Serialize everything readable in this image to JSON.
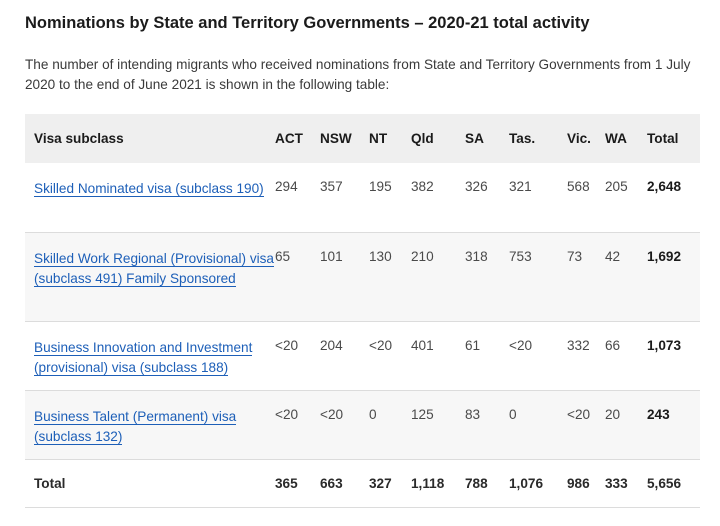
{
  "heading": "Nominations by State and Territory Governments – 2020-21 total activity",
  "intro": "The number of intending migrants who received nominations from State and Territory Governments from 1 July 2020 to the end of June 2021 is shown in the following table:",
  "table": {
    "headers": [
      "Visa subclass",
      "ACT",
      "NSW",
      "NT",
      "Qld",
      "SA",
      "Tas.",
      "Vic.",
      "WA",
      "Total"
    ],
    "rows": [
      {
        "visa": "Skilled Nominated visa (subclass 190)",
        "values": [
          "294",
          "357",
          "195",
          "382",
          "326",
          "321",
          "568",
          "205",
          "2,648"
        ]
      },
      {
        "visa": "Skilled Work Regional (Provisional) visa (subclass 491) Family Sponsored",
        "values": [
          "65",
          "101",
          "130",
          "210",
          "318",
          "753",
          "73",
          "42",
          "1,692"
        ]
      },
      {
        "visa": "Business Innovation and Investment (provisional) visa (subclass 188)",
        "values": [
          "<20",
          "204",
          "<20",
          "401",
          "61",
          "<20",
          "332",
          "66",
          "1,073"
        ]
      },
      {
        "visa": "Business Talent (Permanent) visa (subclass 132)",
        "values": [
          "<20",
          "<20",
          "0",
          "125",
          "83",
          "0",
          "<20",
          "20",
          "243"
        ]
      }
    ],
    "total_row": {
      "label": "Total",
      "values": [
        "365",
        "663",
        "327",
        "1,118",
        "788",
        "1,076",
        "986",
        "333",
        "5,656"
      ]
    }
  },
  "colors": {
    "link": "#1d5fb8",
    "header_bg": "#efefef",
    "alt_row_bg": "#f7f7f7",
    "divider": "#dcdcdc"
  }
}
